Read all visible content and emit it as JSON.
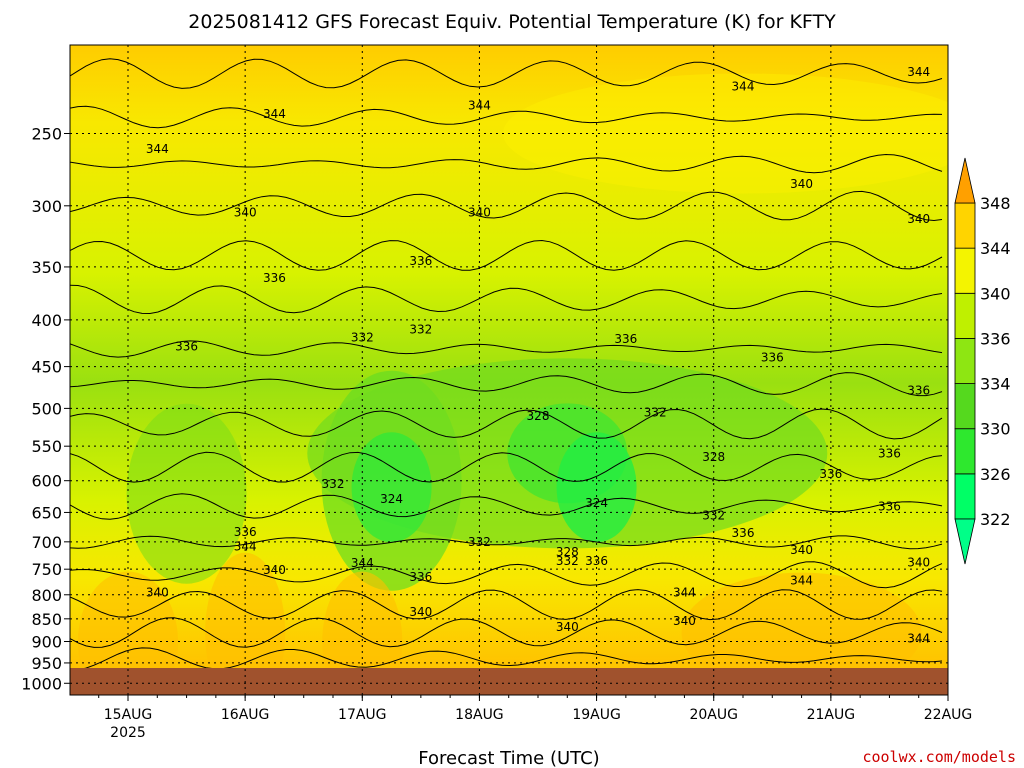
{
  "chart_data": {
    "type": "heatmap",
    "title": "2025081412 GFS Forecast Equiv. Potential Temperature (K) for KFTY",
    "xlabel": "Forecast Time (UTC)",
    "ylabel": "",
    "x_ticks": [
      "15AUG",
      "16AUG",
      "17AUG",
      "18AUG",
      "19AUG",
      "20AUG",
      "21AUG",
      "22AUG"
    ],
    "x_year_label": "2025",
    "y_axis": {
      "scale": "log",
      "inverted": true,
      "range": [
        1030,
        200
      ],
      "units": "hPa"
    },
    "y_ticks": [
      250,
      300,
      350,
      400,
      450,
      500,
      550,
      600,
      650,
      700,
      750,
      800,
      850,
      900,
      950,
      1000
    ],
    "grid": true,
    "colorbar": {
      "levels": [
        322,
        326,
        330,
        334,
        336,
        340,
        344,
        348
      ],
      "colors": [
        "#00ff66",
        "#2ee82e",
        "#55d91e",
        "#8ee612",
        "#bff000",
        "#f4f400",
        "#ffd400",
        "#ffb000"
      ],
      "extend_low_color": "#00ff88",
      "extend_high_color": "#ffa000"
    },
    "contour_labels": [
      {
        "label": "344",
        "time": "18AUG 00Z",
        "p": 233
      },
      {
        "label": "344",
        "time": "16AUG 06Z",
        "p": 238
      },
      {
        "label": "344",
        "time": "20AUG 06Z",
        "p": 222
      },
      {
        "label": "344",
        "time": "21AUG 18Z",
        "p": 214
      },
      {
        "label": "344",
        "time": "15AUG 06Z",
        "p": 260
      },
      {
        "label": "340",
        "time": "16AUG 00Z",
        "p": 305
      },
      {
        "label": "340",
        "time": "18AUG 00Z",
        "p": 305
      },
      {
        "label": "340",
        "time": "20AUG 18Z",
        "p": 284
      },
      {
        "label": "340",
        "time": "21AUG 18Z",
        "p": 310
      },
      {
        "label": "336",
        "time": "16AUG 06Z",
        "p": 360
      },
      {
        "label": "336",
        "time": "17AUG 12Z",
        "p": 345
      },
      {
        "label": "336",
        "time": "15AUG 12Z",
        "p": 428
      },
      {
        "label": "336",
        "time": "19AUG 06Z",
        "p": 420
      },
      {
        "label": "336",
        "time": "20AUG 12Z",
        "p": 440
      },
      {
        "label": "336",
        "time": "21AUG 18Z",
        "p": 478
      },
      {
        "label": "336",
        "time": "21AUG 12Z",
        "p": 560
      },
      {
        "label": "336",
        "time": "21AUG 00Z",
        "p": 590
      },
      {
        "label": "336",
        "time": "21AUG 12Z",
        "p": 640
      },
      {
        "label": "336",
        "time": "16AUG 00Z",
        "p": 683
      },
      {
        "label": "336",
        "time": "20AUG 06Z",
        "p": 685
      },
      {
        "label": "336",
        "time": "17AUG 12Z",
        "p": 765
      },
      {
        "label": "336",
        "time": "19AUG 00Z",
        "p": 735
      },
      {
        "label": "332",
        "time": "17AUG 00Z",
        "p": 418
      },
      {
        "label": "332",
        "time": "17AUG 12Z",
        "p": 410
      },
      {
        "label": "332",
        "time": "19AUG 12Z",
        "p": 505
      },
      {
        "label": "332",
        "time": "16AUG 18Z",
        "p": 605
      },
      {
        "label": "332",
        "time": "20AUG 00Z",
        "p": 655
      },
      {
        "label": "332",
        "time": "18AUG 00Z",
        "p": 700
      },
      {
        "label": "332",
        "time": "18AUG 18Z",
        "p": 735
      },
      {
        "label": "328",
        "time": "18AUG 12Z",
        "p": 510
      },
      {
        "label": "328",
        "time": "20AUG 00Z",
        "p": 565
      },
      {
        "label": "328",
        "time": "18AUG 18Z",
        "p": 718
      },
      {
        "label": "324",
        "time": "17AUG 06Z",
        "p": 628
      },
      {
        "label": "324",
        "time": "18AUG 24Z",
        "p": 635
      },
      {
        "label": "344",
        "time": "16AUG 00Z",
        "p": 708
      },
      {
        "label": "344",
        "time": "17AUG 00Z",
        "p": 738
      },
      {
        "label": "344",
        "time": "19AUG 18Z",
        "p": 795
      },
      {
        "label": "344",
        "time": "20AUG 18Z",
        "p": 772
      },
      {
        "label": "344",
        "time": "21AUG 18Z",
        "p": 893
      },
      {
        "label": "340",
        "time": "16AUG 06Z",
        "p": 752
      },
      {
        "label": "340",
        "time": "15AUG 06Z",
        "p": 795
      },
      {
        "label": "340",
        "time": "17AUG 12Z",
        "p": 835
      },
      {
        "label": "340",
        "time": "18AUG 18Z",
        "p": 868
      },
      {
        "label": "340",
        "time": "19AUG 18Z",
        "p": 855
      },
      {
        "label": "340",
        "time": "20AUG 18Z",
        "p": 715
      },
      {
        "label": "340",
        "time": "21AUG 18Z",
        "p": 737
      }
    ]
  },
  "credit": "coolwx.com/models"
}
